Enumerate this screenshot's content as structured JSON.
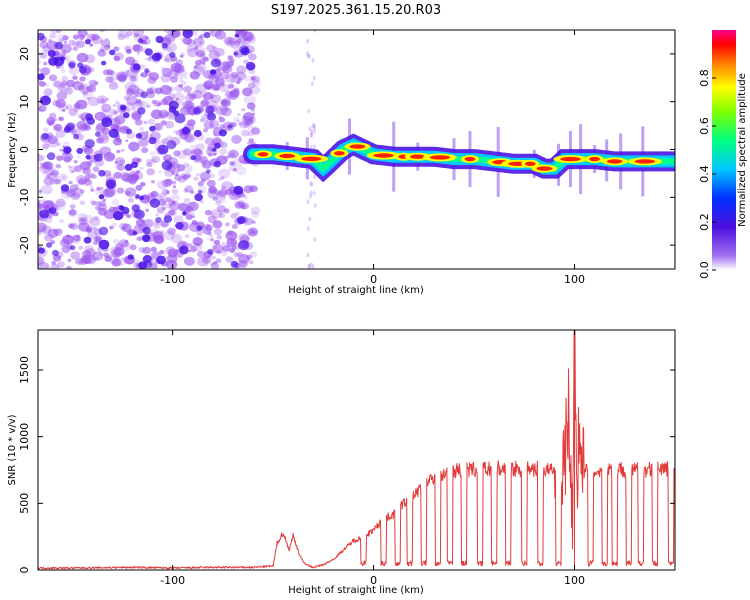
{
  "title": "S197.2025.361.15.20.R03",
  "colors": {
    "noise": "#9b55f0",
    "signal_low": "#4b14e6",
    "line": "#e03a3a",
    "axes": "#000000"
  },
  "chart_data": [
    {
      "type": "heatmap",
      "name": "spectrogram",
      "xlabel": "Height of straight line (km)",
      "ylabel": "Frequency (Hz)",
      "xlim": [
        -167,
        150
      ],
      "ylim": [
        -25,
        25
      ],
      "xticks": [
        -100,
        0,
        100
      ],
      "xtick_labels": [
        "-100",
        "0",
        "100"
      ],
      "yticks": [
        20,
        10,
        0,
        -10,
        -20
      ],
      "ytick_labels": [
        "20",
        "10",
        "0",
        "-10",
        "-20"
      ],
      "noise_region": [
        -167,
        -60
      ],
      "ridge": {
        "x": [
          -60,
          -50,
          -40,
          -30,
          -25,
          -20,
          -15,
          -10,
          -5,
          0,
          10,
          20,
          30,
          40,
          50,
          60,
          70,
          80,
          85,
          90,
          95,
          100,
          110,
          120,
          130,
          140,
          150
        ],
        "y": [
          -1,
          -1,
          -1.5,
          -2,
          -4,
          -2,
          0,
          1,
          0,
          -1,
          -1.5,
          -1.5,
          -1.5,
          -2,
          -2,
          -2.5,
          -3,
          -3,
          -4,
          -4,
          -2,
          -2,
          -2,
          -2.5,
          -2.5,
          -2.5,
          -2.5
        ]
      },
      "colorbar": {
        "label": "Normalized spectral amplitude",
        "range": [
          0,
          1
        ],
        "ticks": [
          0.0,
          0.2,
          0.4,
          0.6,
          0.8
        ],
        "tick_labels": [
          "0.0",
          "0.2",
          "0.4",
          "0.6",
          "0.8"
        ]
      }
    },
    {
      "type": "line",
      "name": "snr",
      "xlabel": "Height of straight line (km)",
      "ylabel": "SNR (10 * v/v)",
      "xlim": [
        -167,
        150
      ],
      "ylim": [
        0,
        1800
      ],
      "xticks": [
        -100,
        0,
        100
      ],
      "xtick_labels": [
        "-100",
        "0",
        "100"
      ],
      "yticks": [
        0,
        500,
        1000,
        1500
      ],
      "ytick_labels": [
        "0",
        "500",
        "1000",
        "1500"
      ],
      "series": [
        {
          "name": "SNR",
          "x": [
            -167,
            -150,
            -120,
            -100,
            -80,
            -60,
            -50,
            -48,
            -45,
            -42,
            -40,
            -37,
            -35,
            -32,
            -30,
            -25,
            -20,
            -15,
            -10,
            -5,
            0,
            5,
            10,
            15,
            20,
            25,
            30,
            35,
            40,
            50,
            60,
            70,
            80,
            90,
            95,
            97,
            99,
            100,
            101,
            103,
            105,
            110,
            120,
            130,
            140,
            150
          ],
          "y": [
            15,
            15,
            20,
            15,
            20,
            20,
            30,
            200,
            280,
            150,
            260,
            120,
            60,
            30,
            20,
            40,
            80,
            150,
            220,
            250,
            300,
            380,
            420,
            500,
            560,
            640,
            700,
            720,
            750,
            750,
            760,
            760,
            760,
            740,
            800,
            1200,
            300,
            1850,
            700,
            1100,
            750,
            740,
            760,
            750,
            760,
            760
          ]
        }
      ],
      "dropouts": [
        -5,
        5,
        12,
        18,
        25,
        32,
        38,
        45,
        53,
        60,
        67,
        75,
        83,
        92,
        108,
        115,
        120,
        127,
        133,
        140,
        148
      ]
    }
  ]
}
